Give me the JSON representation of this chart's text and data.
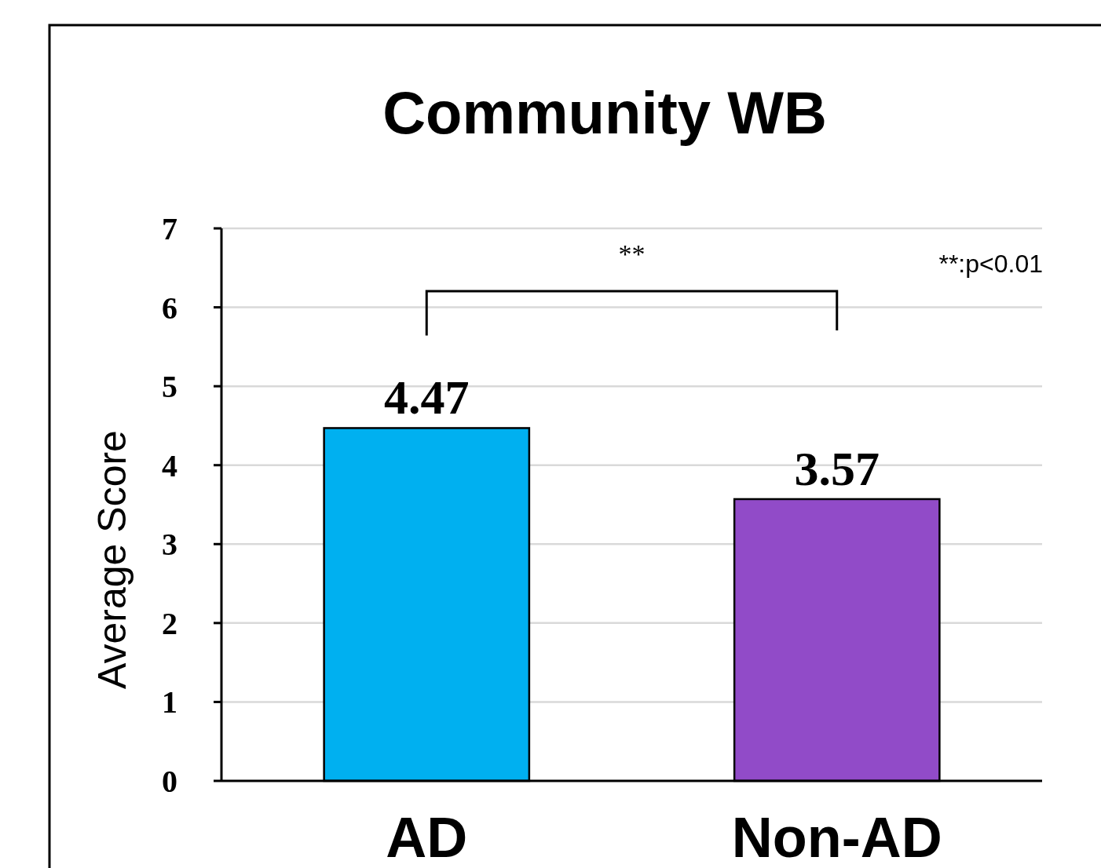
{
  "chart_data": {
    "type": "bar",
    "title": "Community WB",
    "ylabel": "Average Score",
    "categories": [
      "AD",
      "Non-AD"
    ],
    "values": [
      4.47,
      3.57
    ],
    "colors": [
      "#00b0f0",
      "#914bc8"
    ],
    "ylim": [
      0,
      7
    ],
    "yticks": [
      0,
      1,
      2,
      3,
      4,
      5,
      6,
      7
    ],
    "grid": "y",
    "data_labels": true,
    "annotations": [
      "**",
      "**:p<0.01"
    ]
  }
}
